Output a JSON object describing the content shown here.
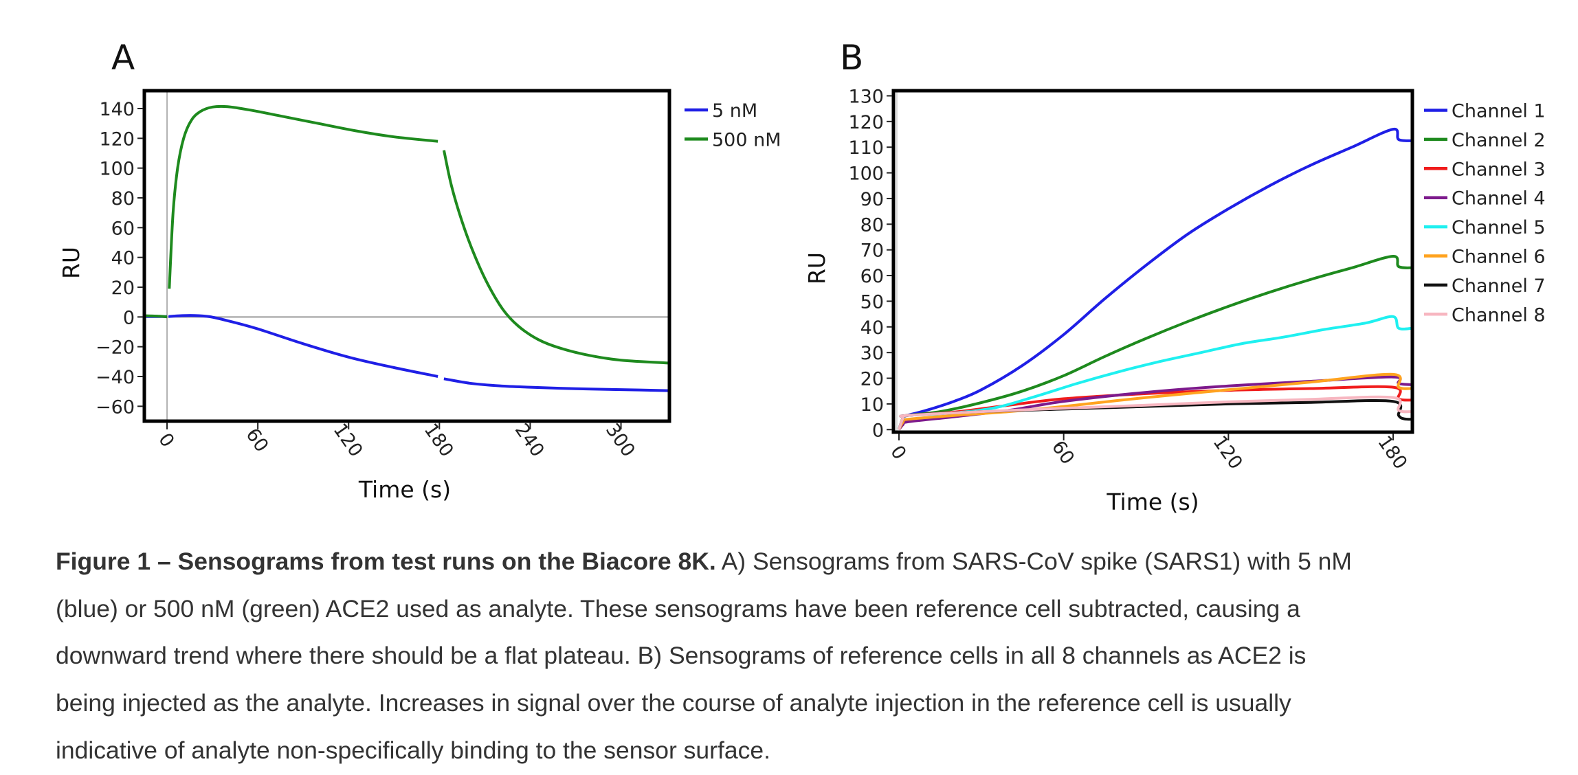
{
  "colors": {
    "ch1": "#1f1fe6",
    "ch2": "#1e8a1e",
    "ch3": "#f01c1c",
    "ch4": "#7d1a8c",
    "ch5": "#1ff0f0",
    "ch6": "#ffa31f",
    "ch7": "#111111",
    "ch8": "#f7b6c0",
    "zero_line": "#9a9a9a"
  },
  "chart_data": [
    {
      "panel": "A",
      "type": "line",
      "xlabel": "Time (s)",
      "ylabel": "RU",
      "xlim": [
        -15,
        332
      ],
      "ylim": [
        -70,
        152
      ],
      "xticks": [
        0,
        60,
        120,
        180,
        240,
        300
      ],
      "yticks": [
        -60,
        -40,
        -20,
        0,
        20,
        40,
        60,
        80,
        100,
        120,
        140
      ],
      "legend_position": "outside-right-top",
      "series": [
        {
          "name": "5 nM",
          "color_key": "ch1",
          "segments": [
            [
              [
                -15,
                0.3
              ],
              [
                0,
                0.3
              ]
            ],
            [
              [
                1,
                0.3
              ],
              [
                10,
                0.9
              ],
              [
                18,
                1.0
              ],
              [
                28,
                0.2
              ],
              [
                40,
                -2.5
              ],
              [
                60,
                -8
              ],
              [
                90,
                -18
              ],
              [
                120,
                -27
              ],
              [
                150,
                -34
              ],
              [
                179,
                -40
              ]
            ],
            [
              [
                183,
                -41.5
              ],
              [
                200,
                -44.5
              ],
              [
                220,
                -46.3
              ],
              [
                240,
                -47.2
              ],
              [
                270,
                -48.2
              ],
              [
                300,
                -48.8
              ],
              [
                332,
                -49.5
              ]
            ]
          ]
        },
        {
          "name": "500 nM",
          "color_key": "ch2",
          "segments": [
            [
              [
                -15,
                0.8
              ],
              [
                -5,
                0.5
              ],
              [
                0,
                0
              ]
            ],
            [
              [
                1.5,
                19
              ],
              [
                4,
                70
              ],
              [
                7,
                100
              ],
              [
                11,
                120
              ],
              [
                16,
                132
              ],
              [
                22,
                138
              ],
              [
                30,
                141
              ],
              [
                40,
                141.3
              ],
              [
                55,
                139
              ],
              [
                75,
                135
              ],
              [
                100,
                130
              ],
              [
                125,
                125
              ],
              [
                150,
                121
              ],
              [
                179,
                118
              ]
            ],
            [
              [
                183,
                112
              ],
              [
                188,
                88
              ],
              [
                195,
                64
              ],
              [
                203,
                42
              ],
              [
                212,
                22
              ],
              [
                222,
                5
              ],
              [
                232,
                -6
              ],
              [
                245,
                -15
              ],
              [
                260,
                -21
              ],
              [
                280,
                -26
              ],
              [
                300,
                -29
              ],
              [
                332,
                -31
              ]
            ]
          ]
        }
      ]
    },
    {
      "panel": "B",
      "type": "line",
      "xlabel": "Time (s)",
      "ylabel": "RU",
      "xlim": [
        -2,
        187
      ],
      "ylim": [
        -1,
        132
      ],
      "xticks": [
        0,
        60,
        120,
        180
      ],
      "yticks": [
        0,
        10,
        20,
        30,
        40,
        50,
        60,
        70,
        80,
        90,
        100,
        110,
        120,
        130
      ],
      "legend_position": "outside-right-top",
      "series": [
        {
          "name": "Channel 1",
          "color_key": "ch1",
          "points": [
            [
              0,
              0
            ],
            [
              1.5,
              4.5
            ],
            [
              3,
              5.5
            ],
            [
              10,
              7.5
            ],
            [
              20,
              11
            ],
            [
              30,
              15.5
            ],
            [
              45,
              25
            ],
            [
              60,
              37
            ],
            [
              75,
              51
            ],
            [
              90,
              64
            ],
            [
              105,
              76
            ],
            [
              120,
              86
            ],
            [
              135,
              95
            ],
            [
              150,
              103
            ],
            [
              165,
              110
            ],
            [
              180,
              117
            ],
            [
              182,
              113
            ],
            [
              187,
              112.5
            ]
          ]
        },
        {
          "name": "Channel 2",
          "color_key": "ch2",
          "points": [
            [
              0,
              0
            ],
            [
              1.5,
              4.5
            ],
            [
              3,
              5.5
            ],
            [
              15,
              7
            ],
            [
              30,
              10.5
            ],
            [
              45,
              15
            ],
            [
              60,
              21
            ],
            [
              75,
              28.5
            ],
            [
              90,
              35.5
            ],
            [
              105,
              42
            ],
            [
              120,
              48
            ],
            [
              135,
              53.5
            ],
            [
              150,
              58.5
            ],
            [
              165,
              63
            ],
            [
              180,
              67.5
            ],
            [
              182,
              63.5
            ],
            [
              187,
              63
            ]
          ]
        },
        {
          "name": "Channel 3",
          "color_key": "ch3",
          "points": [
            [
              0,
              0
            ],
            [
              1.5,
              4.5
            ],
            [
              3,
              5.5
            ],
            [
              20,
              6.8
            ],
            [
              40,
              9.5
            ],
            [
              60,
              12
            ],
            [
              90,
              14
            ],
            [
              120,
              15.3
            ],
            [
              150,
              16
            ],
            [
              180,
              16.5
            ],
            [
              182,
              12
            ],
            [
              187,
              11.5
            ]
          ]
        },
        {
          "name": "Channel 4",
          "color_key": "ch4",
          "points": [
            [
              0,
              0
            ],
            [
              1.5,
              2
            ],
            [
              3,
              3
            ],
            [
              20,
              5
            ],
            [
              40,
              7.5
            ],
            [
              60,
              11
            ],
            [
              90,
              14.5
            ],
            [
              120,
              17
            ],
            [
              150,
              18.8
            ],
            [
              180,
              20.5
            ],
            [
              182,
              18
            ],
            [
              187,
              17.5
            ]
          ]
        },
        {
          "name": "Channel 5",
          "color_key": "ch5",
          "points": [
            [
              0,
              0
            ],
            [
              1.5,
              4.5
            ],
            [
              3,
              5.5
            ],
            [
              20,
              6.5
            ],
            [
              35,
              8.5
            ],
            [
              50,
              13
            ],
            [
              65,
              18
            ],
            [
              80,
              22.5
            ],
            [
              95,
              26.5
            ],
            [
              110,
              30
            ],
            [
              125,
              33.5
            ],
            [
              140,
              36
            ],
            [
              155,
              39
            ],
            [
              170,
              41.5
            ],
            [
              180,
              44
            ],
            [
              182,
              39.5
            ],
            [
              187,
              39.5
            ]
          ]
        },
        {
          "name": "Channel 6",
          "color_key": "ch6",
          "points": [
            [
              0,
              0
            ],
            [
              1.5,
              3
            ],
            [
              3,
              4
            ],
            [
              20,
              5.5
            ],
            [
              40,
              7
            ],
            [
              60,
              9
            ],
            [
              90,
              12.5
            ],
            [
              120,
              15.5
            ],
            [
              150,
              18.5
            ],
            [
              180,
              21.5
            ],
            [
              182,
              16.5
            ],
            [
              187,
              16
            ]
          ]
        },
        {
          "name": "Channel 7",
          "color_key": "ch7",
          "points": [
            [
              0,
              0
            ],
            [
              1.5,
              4.5
            ],
            [
              3,
              5.5
            ],
            [
              30,
              7
            ],
            [
              60,
              8
            ],
            [
              90,
              9
            ],
            [
              120,
              10
            ],
            [
              150,
              10.6
            ],
            [
              180,
              11
            ],
            [
              182,
              5.5
            ],
            [
              184,
              4.2
            ],
            [
              187,
              4
            ]
          ]
        },
        {
          "name": "Channel 8",
          "color_key": "ch8",
          "points": [
            [
              0,
              0
            ],
            [
              1.5,
              4.5
            ],
            [
              3,
              5.5
            ],
            [
              30,
              7
            ],
            [
              60,
              8.3
            ],
            [
              90,
              9.5
            ],
            [
              120,
              10.8
            ],
            [
              150,
              11.8
            ],
            [
              180,
              12.5
            ],
            [
              182,
              7.5
            ],
            [
              187,
              7
            ]
          ]
        }
      ]
    }
  ],
  "caption": {
    "bold": "Figure 1 – Sensograms from test runs on the Biacore 8K.",
    "line1": " A) Sensograms from SARS-CoV spike (SARS1) with 5 nM",
    "line2": "(blue) or 500 nM (green) ACE2 used as analyte. These sensograms have been reference cell subtracted, causing a",
    "line3": "downward trend where there should be a flat plateau. B) Sensograms of reference cells in all 8 channels as ACE2 is",
    "line4": "being injected as the analyte. Increases in signal over the course of analyte injection in the reference cell is usually",
    "line5": "indicative of analyte non-specifically binding to the sensor surface."
  }
}
